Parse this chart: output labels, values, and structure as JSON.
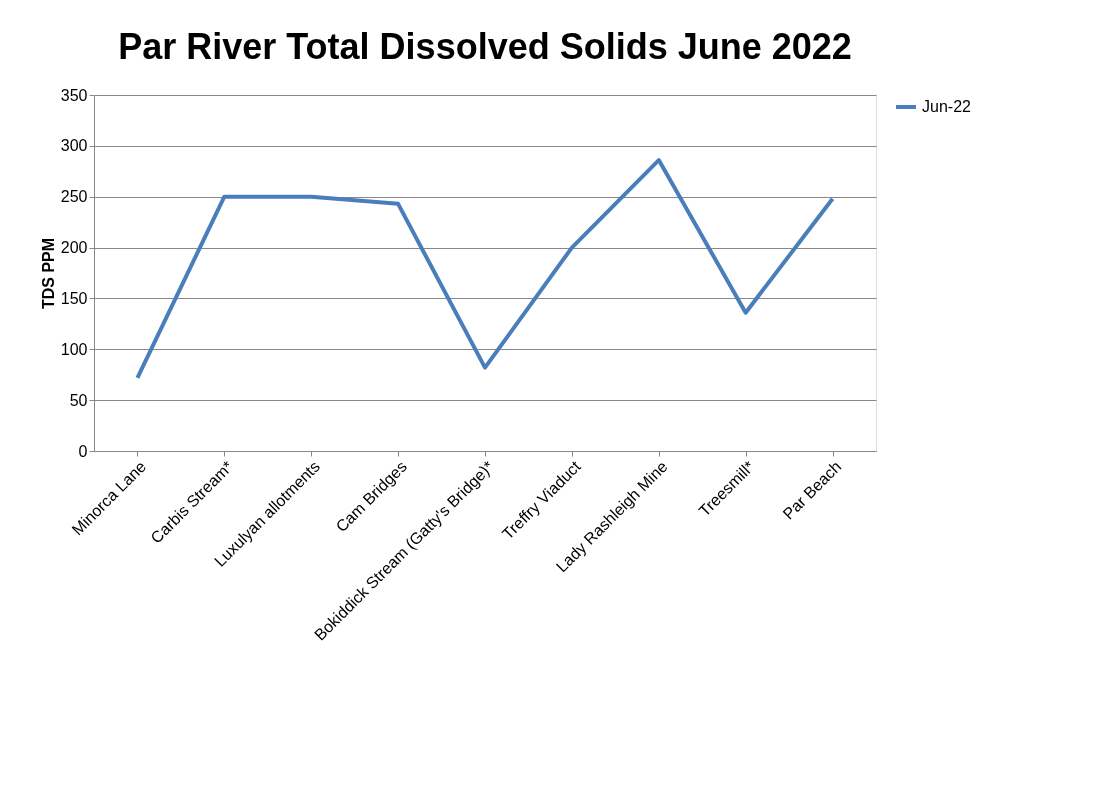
{
  "chart_data": {
    "type": "line",
    "title": "Par River Total Dissolved Solids June 2022",
    "ylabel": "TDS PPM",
    "categories": [
      "Minorca Lane",
      "Carbis Stream*",
      "Luxulyan allotments",
      "Cam Bridges",
      "Bokiddick Stream (Gatty's Bridge)*",
      "Treffry Viaduct",
      "Lady Rashleigh Mine",
      "Treesmill*",
      "Par Beach"
    ],
    "series": [
      {
        "name": "Jun-22",
        "color": "#4a7ebb",
        "values": [
          72,
          250,
          250,
          243,
          82,
          200,
          286,
          136,
          248
        ]
      }
    ],
    "ylim": [
      0,
      350
    ],
    "yticks": [
      0,
      50,
      100,
      150,
      200,
      250,
      300,
      350
    ],
    "grid": "y",
    "legend": "right",
    "marker": "none",
    "line_style": "solid"
  }
}
